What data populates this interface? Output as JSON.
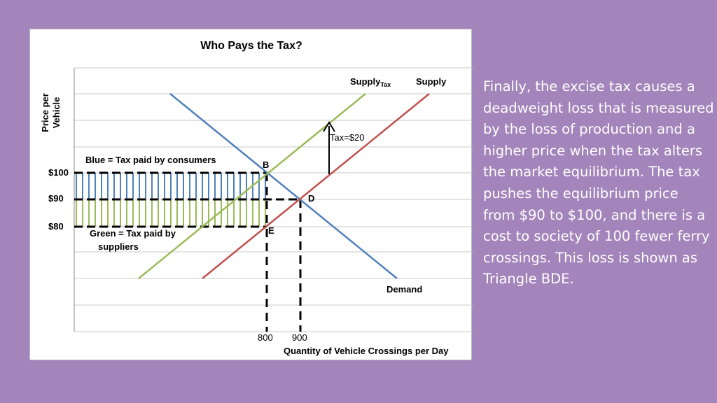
{
  "chart": {
    "title": "Who Pays the Tax?",
    "y_axis_title": "Price per Vehicle",
    "x_axis_title": "Quantity of Vehicle Crossings per Day",
    "y_ticks": [
      "$100",
      "$90",
      "$80"
    ],
    "x_ticks": [
      "800",
      "900"
    ],
    "lines": {
      "supply_tax_main": "Supply",
      "supply_tax_sub": "Tax",
      "supply": "Supply",
      "demand": "Demand"
    },
    "points": {
      "b": "B",
      "d": "D",
      "e": "E"
    },
    "tax_arrow_label": "Tax=$20",
    "consumer_share_label": "Blue = Tax paid by consumers",
    "supplier_share_label_line1": "Green = Tax paid by",
    "supplier_share_label_line2": "suppliers",
    "colors": {
      "demand": "#4f81bd",
      "supply": "#c0504d",
      "supply_tax": "#9bbb59",
      "consumer_tax": "#4f81bd",
      "supplier_tax": "#9bbb59"
    }
  },
  "chart_data": {
    "type": "line",
    "title": "Who Pays the Tax?",
    "xlabel": "Quantity of Vehicle Crossings per Day",
    "ylabel": "Price per Vehicle",
    "equilibrium_before_tax": {
      "quantity": 900,
      "price": 90
    },
    "equilibrium_after_tax": {
      "quantity": 800,
      "consumer_price": 100,
      "supplier_price": 80
    },
    "tax_per_vehicle": 20,
    "series": [
      {
        "name": "Supply"
      },
      {
        "name": "SupplyTax"
      },
      {
        "name": "Demand"
      }
    ]
  },
  "narration": {
    "text": "Finally, the excise tax causes a deadweight loss that is measured by the loss of production and a higher price when the tax alters the market equilibrium.  The tax pushes the equilibrium price from $90 to $100, and there is a cost to society of 100 fewer ferry crossings.  This loss is shown as Triangle BDE."
  }
}
